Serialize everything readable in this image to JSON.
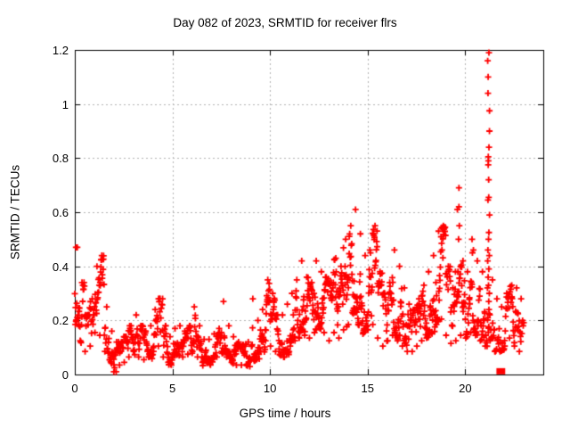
{
  "window": {
    "background": "#ffffff"
  },
  "chart_data": {
    "type": "scatter",
    "title": "Day 082 of 2023, SRMTID for receiver flrs",
    "xlabel": "GPS time / hours",
    "ylabel": "SRMTID / TECUs",
    "xlim": [
      0,
      24
    ],
    "ylim": [
      0,
      1.2
    ],
    "xticks": [
      0,
      5,
      10,
      15,
      20
    ],
    "xtick_labels": [
      "0",
      "5",
      "10",
      "15",
      "20"
    ],
    "yticks": [
      0,
      0.2,
      0.4,
      0.6,
      0.8,
      1,
      1.2
    ],
    "ytick_labels": [
      "0",
      "0.2",
      "0.4",
      "0.6",
      "0.8",
      "1",
      "1.2"
    ],
    "grid": true,
    "grid_color": "#b3b3b3",
    "axis_color": "#000000",
    "marker": "plus",
    "marker_color": "#ff0000",
    "legend": "none",
    "series_name": "SRMTID",
    "bands_format": [
      "bin_start_hour",
      "y_min_TECU",
      "y_max_TECU",
      "point_count"
    ],
    "bands": [
      [
        0.0,
        0.18,
        0.47,
        16
      ],
      [
        0.25,
        0.12,
        0.34,
        13
      ],
      [
        0.5,
        0.08,
        0.22,
        12
      ],
      [
        0.75,
        0.1,
        0.28,
        12
      ],
      [
        1.0,
        0.15,
        0.4,
        14
      ],
      [
        1.25,
        0.14,
        0.44,
        16
      ],
      [
        1.5,
        0.08,
        0.25,
        12
      ],
      [
        1.75,
        0.05,
        0.16,
        12
      ],
      [
        2.0,
        0.02,
        0.12,
        12
      ],
      [
        2.25,
        0.03,
        0.12,
        12
      ],
      [
        2.5,
        0.04,
        0.14,
        12
      ],
      [
        2.75,
        0.06,
        0.18,
        12
      ],
      [
        3.0,
        0.08,
        0.22,
        12
      ],
      [
        3.25,
        0.06,
        0.18,
        12
      ],
      [
        3.5,
        0.05,
        0.16,
        12
      ],
      [
        3.75,
        0.06,
        0.18,
        12
      ],
      [
        4.0,
        0.08,
        0.24,
        13
      ],
      [
        4.25,
        0.1,
        0.28,
        13
      ],
      [
        4.5,
        0.06,
        0.18,
        12
      ],
      [
        4.75,
        0.04,
        0.14,
        12
      ],
      [
        5.0,
        0.06,
        0.17,
        12
      ],
      [
        5.25,
        0.07,
        0.18,
        12
      ],
      [
        5.5,
        0.06,
        0.16,
        12
      ],
      [
        5.75,
        0.07,
        0.18,
        12
      ],
      [
        6.0,
        0.08,
        0.25,
        13
      ],
      [
        6.25,
        0.06,
        0.18,
        12
      ],
      [
        6.5,
        0.04,
        0.13,
        12
      ],
      [
        6.75,
        0.04,
        0.13,
        12
      ],
      [
        7.0,
        0.05,
        0.15,
        12
      ],
      [
        7.25,
        0.06,
        0.17,
        12
      ],
      [
        7.5,
        0.08,
        0.27,
        13
      ],
      [
        7.75,
        0.06,
        0.18,
        12
      ],
      [
        8.0,
        0.04,
        0.14,
        12
      ],
      [
        8.25,
        0.03,
        0.12,
        12
      ],
      [
        8.5,
        0.03,
        0.11,
        12
      ],
      [
        8.75,
        0.03,
        0.12,
        12
      ],
      [
        9.0,
        0.05,
        0.28,
        13
      ],
      [
        9.25,
        0.06,
        0.2,
        12
      ],
      [
        9.5,
        0.08,
        0.24,
        13
      ],
      [
        9.75,
        0.12,
        0.35,
        16
      ],
      [
        10.0,
        0.1,
        0.3,
        14
      ],
      [
        10.25,
        0.08,
        0.22,
        12
      ],
      [
        10.5,
        0.07,
        0.22,
        12
      ],
      [
        10.75,
        0.08,
        0.26,
        12
      ],
      [
        11.0,
        0.1,
        0.3,
        13
      ],
      [
        11.25,
        0.12,
        0.35,
        13
      ],
      [
        11.5,
        0.15,
        0.42,
        16
      ],
      [
        11.75,
        0.14,
        0.36,
        14
      ],
      [
        12.0,
        0.13,
        0.34,
        14
      ],
      [
        12.25,
        0.15,
        0.42,
        15
      ],
      [
        12.5,
        0.17,
        0.38,
        15
      ],
      [
        12.75,
        0.15,
        0.36,
        14
      ],
      [
        13.0,
        0.12,
        0.34,
        14
      ],
      [
        13.25,
        0.15,
        0.43,
        15
      ],
      [
        13.5,
        0.13,
        0.4,
        14
      ],
      [
        13.75,
        0.16,
        0.5,
        15
      ],
      [
        14.0,
        0.18,
        0.55,
        16
      ],
      [
        14.25,
        0.22,
        0.61,
        18
      ],
      [
        14.5,
        0.18,
        0.52,
        16
      ],
      [
        14.75,
        0.15,
        0.44,
        15
      ],
      [
        15.0,
        0.16,
        0.46,
        15
      ],
      [
        15.25,
        0.18,
        0.55,
        16
      ],
      [
        15.5,
        0.13,
        0.38,
        14
      ],
      [
        15.75,
        0.1,
        0.3,
        13
      ],
      [
        16.0,
        0.12,
        0.34,
        14
      ],
      [
        16.25,
        0.14,
        0.46,
        15
      ],
      [
        16.5,
        0.12,
        0.4,
        14
      ],
      [
        16.75,
        0.1,
        0.32,
        13
      ],
      [
        17.0,
        0.08,
        0.26,
        13
      ],
      [
        17.25,
        0.08,
        0.24,
        12
      ],
      [
        17.5,
        0.1,
        0.28,
        13
      ],
      [
        17.75,
        0.12,
        0.33,
        14
      ],
      [
        18.0,
        0.13,
        0.38,
        14
      ],
      [
        18.25,
        0.15,
        0.44,
        15
      ],
      [
        18.5,
        0.18,
        0.53,
        16
      ],
      [
        18.75,
        0.2,
        0.55,
        16
      ],
      [
        19.0,
        0.14,
        0.4,
        14
      ],
      [
        19.25,
        0.11,
        0.32,
        13
      ],
      [
        19.5,
        0.12,
        0.38,
        14
      ],
      [
        19.75,
        0.14,
        0.42,
        14
      ],
      [
        20.0,
        0.13,
        0.38,
        13
      ],
      [
        20.25,
        0.15,
        0.45,
        13
      ],
      [
        20.5,
        0.14,
        0.42,
        13
      ],
      [
        20.75,
        0.12,
        0.38,
        13
      ],
      [
        21.0,
        0.1,
        0.32,
        12
      ],
      [
        21.25,
        0.12,
        0.35,
        12
      ],
      [
        21.5,
        0.08,
        0.28,
        11
      ],
      [
        21.75,
        0.08,
        0.25,
        11
      ],
      [
        22.0,
        0.1,
        0.3,
        12
      ],
      [
        22.25,
        0.13,
        0.33,
        13
      ],
      [
        22.5,
        0.1,
        0.32,
        12
      ],
      [
        22.75,
        0.08,
        0.28,
        11
      ]
    ],
    "spike": {
      "x": 21.2,
      "values": [
        1.19,
        1.16,
        1.1,
        1.04,
        0.975,
        0.9,
        0.84,
        0.805,
        0.79,
        0.775,
        0.72,
        0.655,
        0.645,
        0.59,
        0.525,
        0.5,
        0.46,
        0.44,
        0.42,
        0.39,
        0.36,
        0.33,
        0.3,
        0.27,
        0.24,
        0.21
      ]
    },
    "outliers": [
      [
        0.06,
        0.47
      ],
      [
        19.6,
        0.61
      ],
      [
        19.68,
        0.69
      ],
      [
        19.68,
        0.62
      ],
      [
        19.7,
        0.55
      ],
      [
        19.66,
        0.5
      ],
      [
        20.35,
        0.5
      ],
      [
        20.42,
        0.46
      ],
      [
        2.0,
        0.01
      ],
      [
        2.12,
        0.01
      ]
    ],
    "zero_cluster": {
      "x0": 21.6,
      "x1": 22.05,
      "y": 0.012
    }
  }
}
